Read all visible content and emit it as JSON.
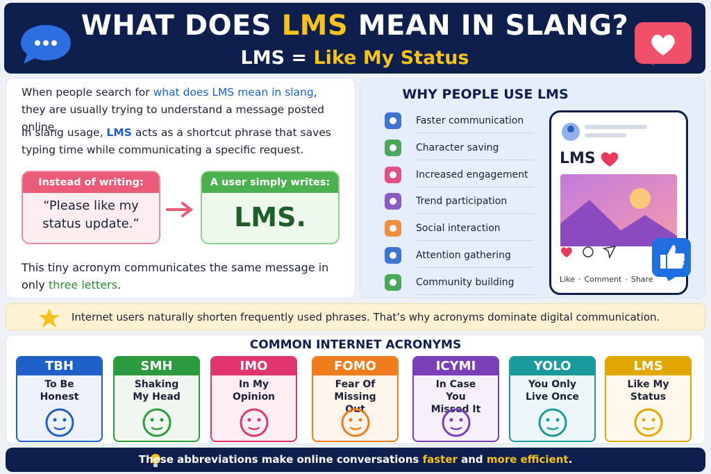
{
  "header": {
    "title_parts": [
      "WHAT DOES ",
      "LMS",
      " MEAN IN SLANG?"
    ],
    "subtitle_parts": [
      "LMS = ",
      "Like My Status"
    ]
  },
  "intro": {
    "paragraph_1": [
      "When people search for ",
      "what does LMS mean in slang",
      ", they are usually trying to understand a message posted online."
    ],
    "paragraph_2": [
      "In slang usage, ",
      "LMS",
      " acts as a shortcut phrase that saves typing time while communicating a specific request."
    ],
    "instead": {
      "label": "Instead of writing:",
      "text": "“Please like my status update.”"
    },
    "writes": {
      "label": "A user simply writes:",
      "text": "LMS."
    },
    "paragraph_3": [
      "This tiny acronym communicates the same message in only ",
      "three letters",
      "."
    ]
  },
  "why": {
    "title": "WHY PEOPLE USE LMS",
    "items": [
      "Faster communication",
      "Character saving",
      "Increased engagement",
      "Trend participation",
      "Social interaction",
      "Attention gathering",
      "Community building"
    ],
    "post": {
      "text": "LMS",
      "actions": [
        "Like",
        "Comment",
        "Share"
      ]
    }
  },
  "banner": "Internet users naturally shorten frequently used phrases. That’s why acronyms dominate digital communication.",
  "acronyms": {
    "title": "COMMON INTERNET ACRONYMS",
    "items": [
      {
        "abbr": "TBH",
        "meaning": "To Be Honest",
        "color": "#1f5fc8"
      },
      {
        "abbr": "SMH",
        "meaning": "Shaking My Head",
        "color": "#2e9a3e"
      },
      {
        "abbr": "IMO",
        "meaning": "In My Opinion",
        "color": "#e0356e"
      },
      {
        "abbr": "FOMO",
        "meaning": "Fear Of Missing Out",
        "color": "#f07c1e"
      },
      {
        "abbr": "ICYMI",
        "meaning": "In Case You Missed It",
        "color": "#7b3fb8"
      },
      {
        "abbr": "YOLO",
        "meaning": "You Only Live Once",
        "color": "#1a9a9a"
      },
      {
        "abbr": "LMS",
        "meaning": "Like My Status",
        "color": "#e0a800"
      }
    ]
  },
  "footer": [
    "These abbreviations make online conversations ",
    "faster",
    " and ",
    "more efficient",
    "."
  ]
}
